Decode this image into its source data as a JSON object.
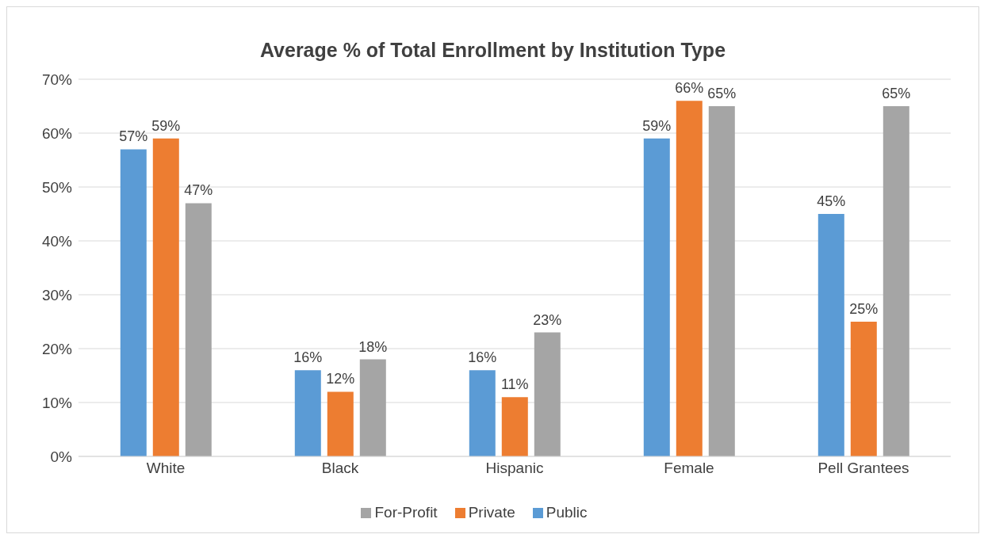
{
  "chart_data": {
    "type": "bar",
    "title": "Average % of Total Enrollment by Institution Type",
    "categories": [
      "White",
      "Black",
      "Hispanic",
      "Female",
      "Pell Grantees"
    ],
    "series": [
      {
        "name": "Public",
        "color": "#5b9bd5",
        "values": [
          57,
          16,
          16,
          59,
          45
        ],
        "value_labels": [
          "57%",
          "16%",
          "16%",
          "59%",
          "45%"
        ]
      },
      {
        "name": "Private",
        "color": "#ed7d31",
        "values": [
          59,
          12,
          11,
          66,
          25
        ],
        "value_labels": [
          "59%",
          "12%",
          "11%",
          "66%",
          "25%"
        ]
      },
      {
        "name": "For-Profit",
        "color": "#a5a5a5",
        "values": [
          47,
          18,
          23,
          65,
          65
        ],
        "value_labels": [
          "47%",
          "18%",
          "23%",
          "65%",
          "65%"
        ]
      }
    ],
    "ylim": [
      0,
      70
    ],
    "yticks": [
      {
        "value": 0,
        "label": "0%"
      },
      {
        "value": 10,
        "label": "10%"
      },
      {
        "value": 20,
        "label": "20%"
      },
      {
        "value": 30,
        "label": "30%"
      },
      {
        "value": 40,
        "label": "40%"
      },
      {
        "value": 50,
        "label": "50%"
      },
      {
        "value": 60,
        "label": "60%"
      },
      {
        "value": 70,
        "label": "70%"
      }
    ],
    "grid": "y",
    "legend": "bottom"
  }
}
